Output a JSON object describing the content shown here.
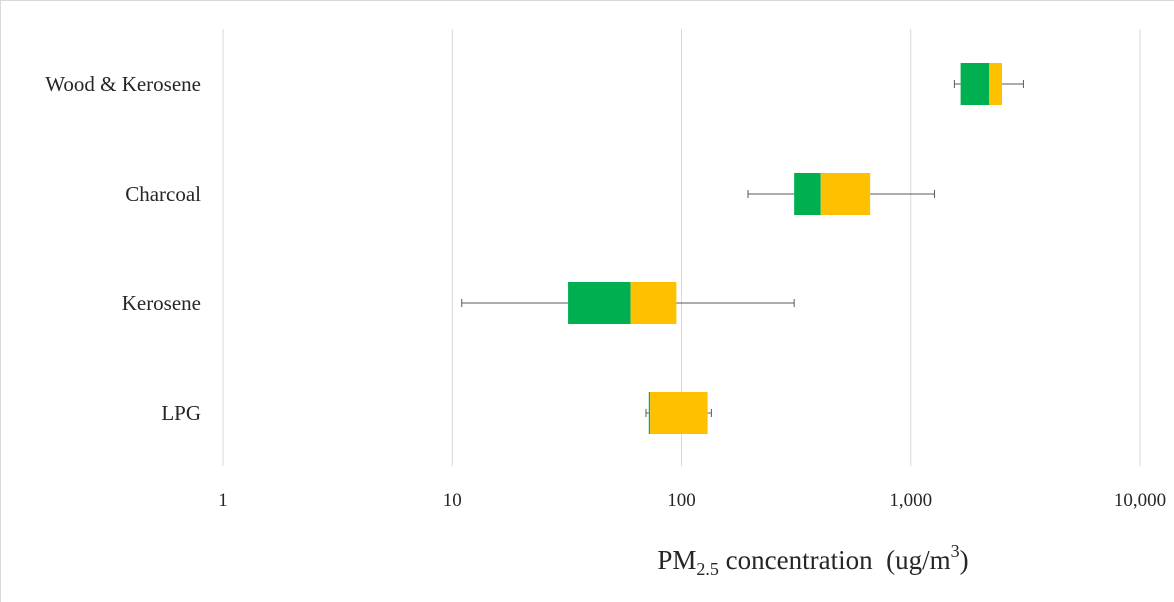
{
  "chart_data": {
    "type": "box",
    "title": "",
    "xscale": "log",
    "xlim": [
      1,
      10000
    ],
    "grid": true,
    "xticks": [
      {
        "value": 1,
        "label": "1"
      },
      {
        "value": 10,
        "label": "10"
      },
      {
        "value": 100,
        "label": "100"
      },
      {
        "value": 1000,
        "label": "1,000"
      },
      {
        "value": 10000,
        "label": "10,000"
      }
    ],
    "xlabel": {
      "prefix": "PM",
      "subscript": "2.5",
      "middle": " concentration  (ug/m",
      "superscript": "3",
      "suffix": ")"
    },
    "colors": {
      "lower_box": "#00b050",
      "upper_box": "#ffc000",
      "whisker": "#595959",
      "grid": "#d9d9d9"
    },
    "categories": [
      "Wood & Kerosene",
      "Charcoal",
      "Kerosene",
      "LPG"
    ],
    "boxes": [
      {
        "category": "Wood & Kerosene",
        "min": 1550,
        "q1": 1650,
        "median": 2200,
        "q3": 2500,
        "max": 3100
      },
      {
        "category": "Charcoal",
        "min": 195,
        "q1": 310,
        "median": 405,
        "q3": 665,
        "max": 1270
      },
      {
        "category": "Kerosene",
        "min": 11,
        "q1": 32,
        "median": 60,
        "q3": 95,
        "max": 310
      },
      {
        "category": "LPG",
        "min": 70,
        "q1": 72,
        "median": 73,
        "q3": 130,
        "max": 135
      }
    ]
  }
}
